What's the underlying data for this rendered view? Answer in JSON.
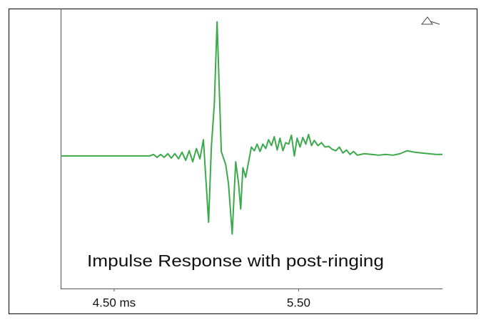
{
  "chart_data": {
    "type": "line",
    "annotation": "Impulse Response with post-ringing",
    "color": "#3aaa4a",
    "xlim": [
      4.21,
      6.28
    ],
    "xticks": [
      {
        "value": 4.5,
        "label": "4.50 ms"
      },
      {
        "value": 5.5,
        "label": "5.50"
      }
    ],
    "ylim": [
      -0.9,
      1.0
    ],
    "x": [
      4.21,
      4.674,
      4.694,
      4.713,
      4.733,
      4.752,
      4.771,
      4.791,
      4.81,
      4.829,
      4.849,
      4.868,
      4.888,
      4.907,
      4.926,
      4.946,
      4.965,
      4.984,
      5.012,
      5.027,
      5.043,
      5.058,
      5.081,
      5.105,
      5.12,
      5.14,
      5.159,
      5.174,
      5.186,
      5.198,
      5.213,
      5.229,
      5.244,
      5.26,
      5.275,
      5.291,
      5.306,
      5.322,
      5.337,
      5.353,
      5.368,
      5.384,
      5.399,
      5.415,
      5.43,
      5.446,
      5.461,
      5.477,
      5.492,
      5.508,
      5.523,
      5.539,
      5.554,
      5.57,
      5.585,
      5.605,
      5.624,
      5.643,
      5.663,
      5.682,
      5.702,
      5.721,
      5.74,
      5.76,
      5.779,
      5.798,
      5.818,
      5.857,
      5.895,
      5.934,
      5.973,
      6.012,
      6.05,
      6.089,
      6.128,
      6.167,
      6.205,
      6.244,
      6.28
    ],
    "values": [
      0,
      0,
      0,
      0.01,
      -0.01,
      0.01,
      -0.01,
      0.015,
      -0.015,
      0.015,
      -0.02,
      0.025,
      -0.03,
      0.035,
      -0.04,
      0.05,
      -0.02,
      0.11,
      -0.45,
      0.06,
      0.35,
      0.91,
      0.03,
      -0.06,
      -0.19,
      -0.53,
      -0.04,
      -0.18,
      -0.36,
      -0.08,
      -0.145,
      -0.04,
      0.06,
      0.035,
      0.08,
      0.03,
      0.08,
      0.05,
      0.11,
      0.07,
      0.13,
      0.04,
      0.12,
      0.035,
      0.09,
      0.08,
      0.14,
      0,
      0.12,
      0.06,
      0.125,
      0.08,
      0.145,
      0.07,
      0.105,
      0.07,
      0.09,
      0.06,
      0.065,
      0.045,
      0.035,
      0.06,
      0.02,
      0.04,
      0.01,
      0.03,
      0.005,
      0.015,
      0.01,
      0.005,
      0.01,
      0.005,
      0.015,
      0.035,
      0.025,
      0.02,
      0.015,
      0.01,
      0.01
    ]
  }
}
